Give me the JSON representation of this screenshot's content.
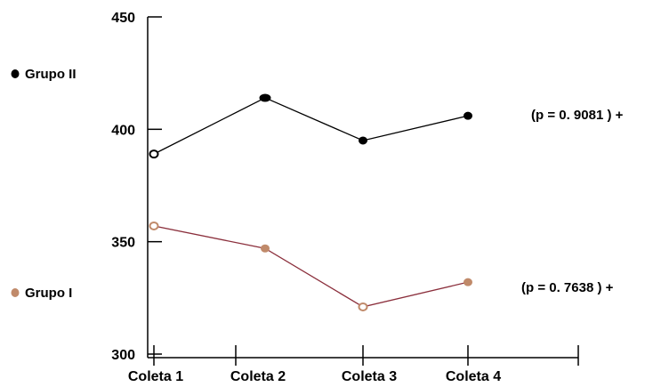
{
  "chart_data": {
    "type": "line",
    "title": "",
    "xlabel": "",
    "ylabel": "",
    "categories": [
      "Coleta 1",
      "Coleta 2",
      "Coleta 3",
      "Coleta 4"
    ],
    "ylim": [
      300,
      450
    ],
    "yticks": [
      450,
      400,
      350,
      300
    ],
    "grid": false,
    "legend_placement": "left",
    "series": [
      {
        "name": "Grupo II",
        "values": [
          389,
          414,
          395,
          406
        ],
        "color": "#000000",
        "marker_color": "#000000",
        "annotation": "(p = 0. 9081 ) +"
      },
      {
        "name": "Grupo I",
        "values": [
          357,
          347,
          321,
          332
        ],
        "color": "#8b2f3c",
        "marker_color": "#c08a6a",
        "annotation": "(p = 0. 7638 ) +"
      }
    ]
  }
}
